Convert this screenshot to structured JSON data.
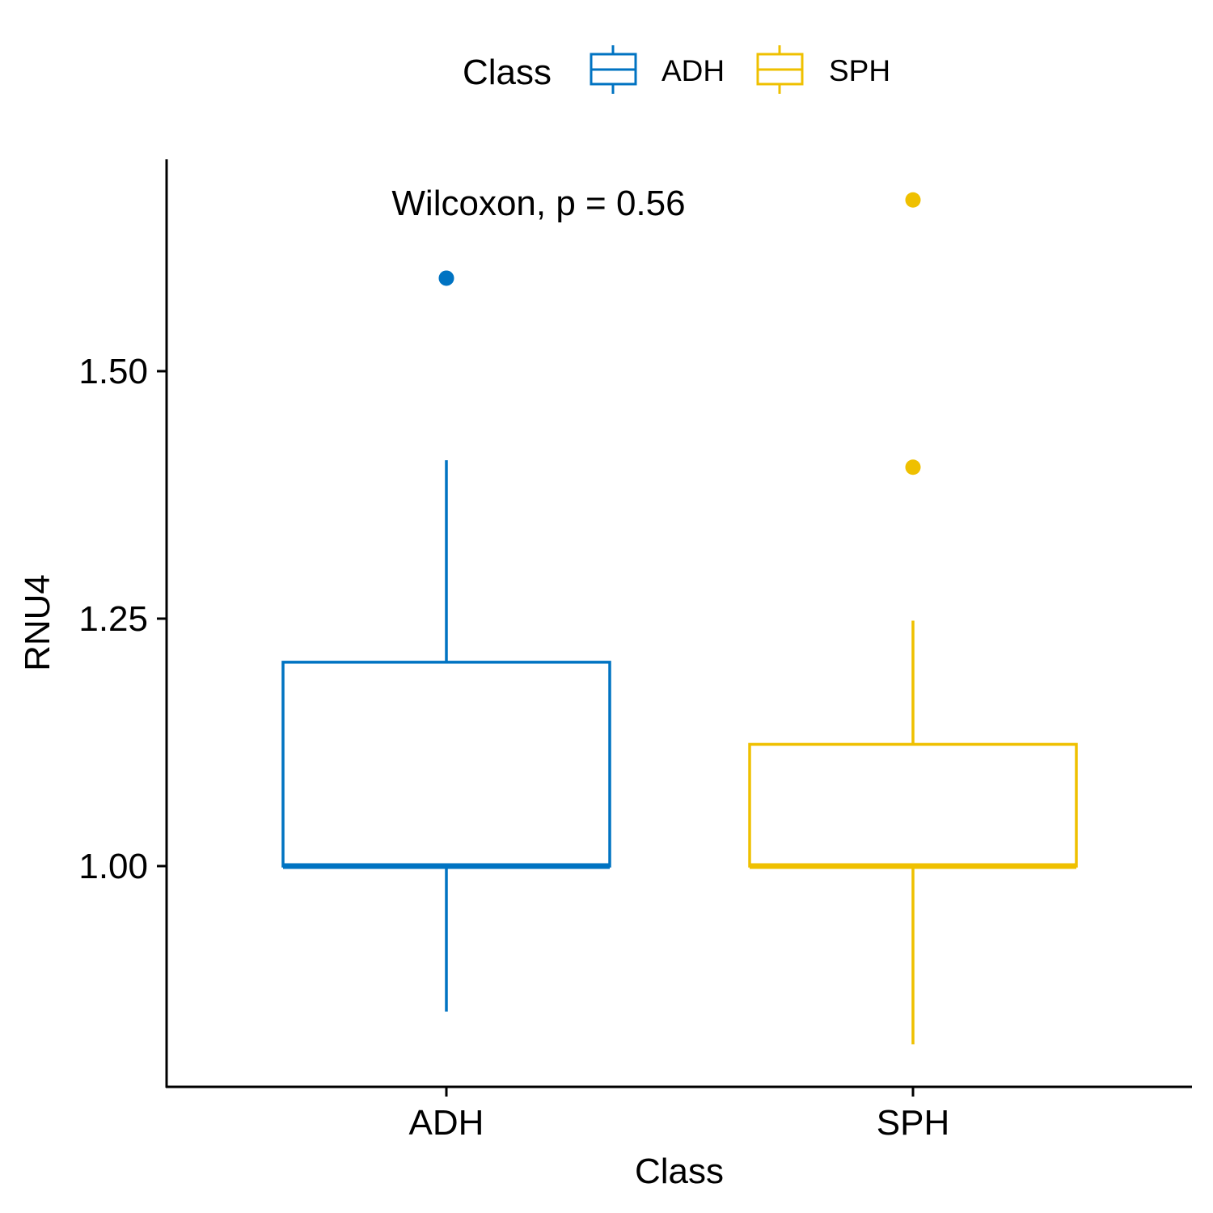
{
  "chart_data": {
    "type": "box",
    "xlabel": "Class",
    "ylabel": "RNU4",
    "ylim": [
      0.78,
      1.715
    ],
    "yticks": [
      1.0,
      1.25,
      1.5
    ],
    "ytick_labels": [
      "1.00",
      "1.25",
      "1.50"
    ],
    "annotation": "Wilcoxon, p = 0.56",
    "legend": {
      "title": "Class",
      "position": "top",
      "entries": [
        "ADH",
        "SPH"
      ]
    },
    "categories": [
      "ADH",
      "SPH"
    ],
    "series": [
      {
        "name": "ADH",
        "color": "#0073C2",
        "whisker_low": 0.853,
        "q1": 1.0,
        "median": 1.0,
        "q3": 1.206,
        "whisker_high": 1.41,
        "outliers": [
          1.594
        ]
      },
      {
        "name": "SPH",
        "color": "#EFC000",
        "whisker_low": 0.82,
        "q1": 1.0,
        "median": 1.0,
        "q3": 1.123,
        "whisker_high": 1.248,
        "outliers": [
          1.403,
          1.673
        ]
      }
    ]
  }
}
